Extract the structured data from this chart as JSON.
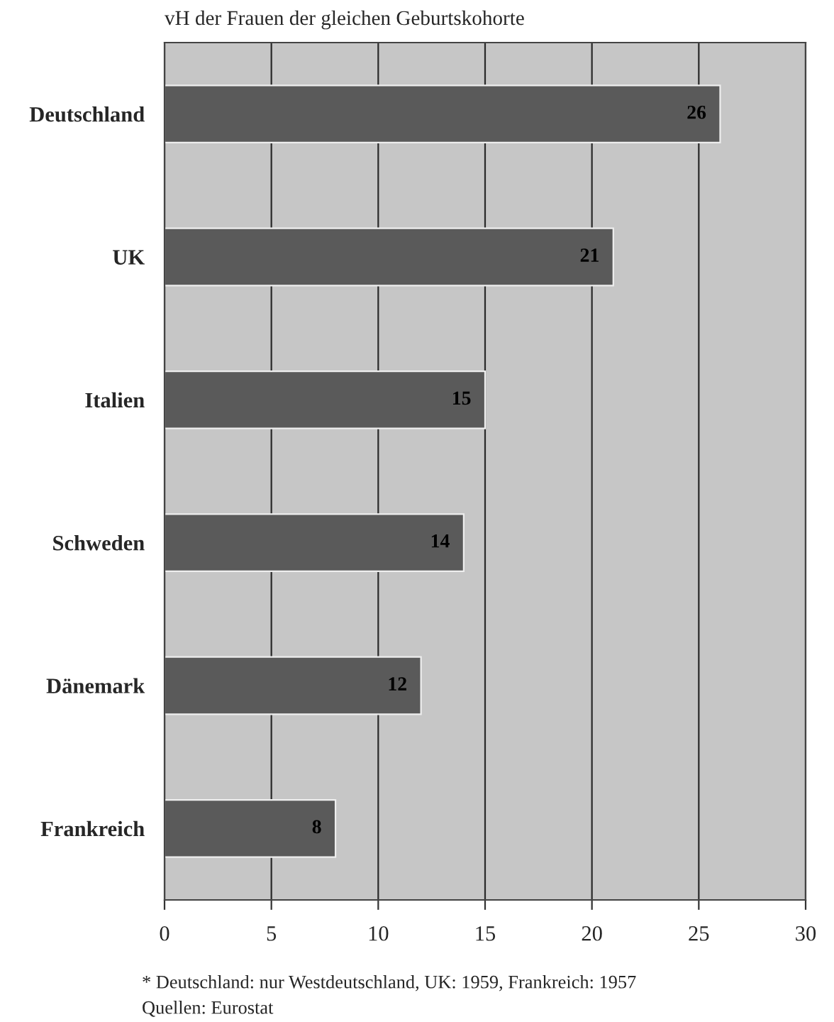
{
  "chart_data": {
    "type": "bar",
    "orientation": "horizontal",
    "title": "vH der Frauen der gleichen Geburtskohorte",
    "categories": [
      "Deutschland",
      "UK",
      "Italien",
      "Schweden",
      "Dänemark",
      "Frankreich"
    ],
    "values": [
      26,
      21,
      15,
      14,
      12,
      8
    ],
    "color": "#5a5a5a",
    "xlim": [
      0,
      30
    ],
    "xticks": [
      0,
      5,
      10,
      15,
      20,
      25,
      30
    ],
    "grid": "x",
    "data_labels": true,
    "annotations": [
      "* Deutschland: nur Westdeutschland, UK: 1959, Frankreich: 1957",
      "Quellen: Eurostat"
    ]
  }
}
